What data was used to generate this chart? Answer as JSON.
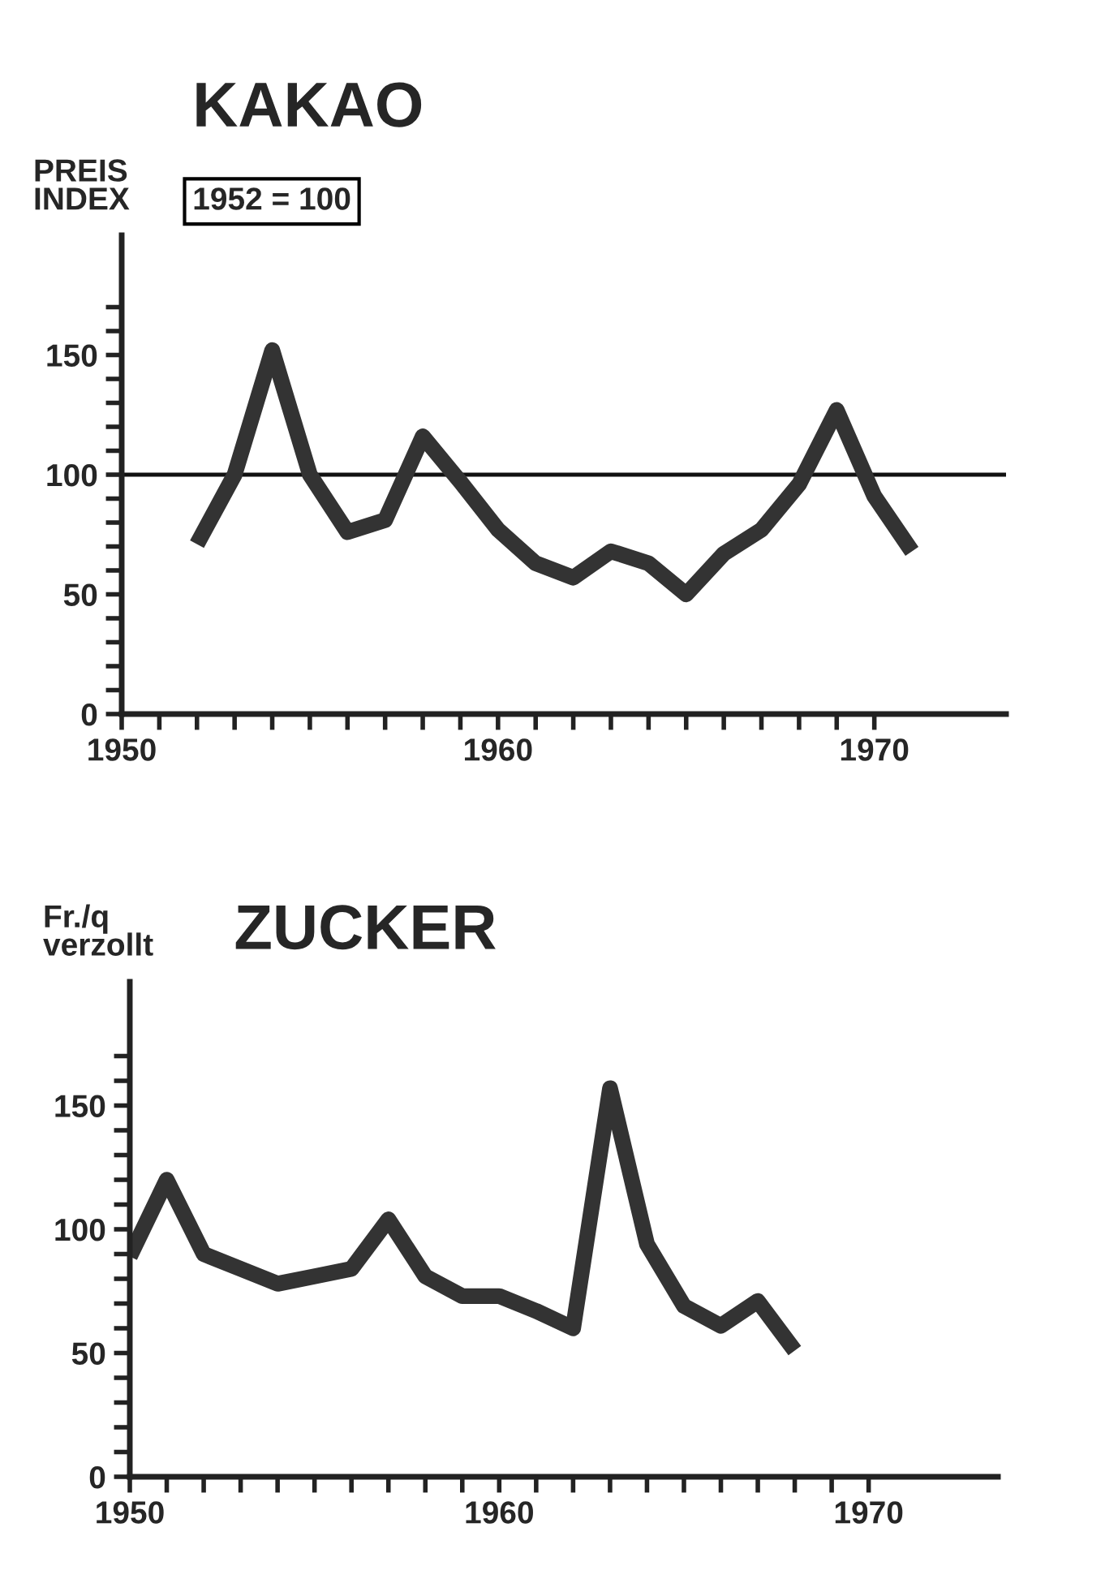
{
  "chart_data": [
    {
      "type": "line",
      "title": "KAKAO",
      "ylabel": "PREIS\nINDEX",
      "annotations": [
        "1952 = 100"
      ],
      "x": [
        1952,
        1953,
        1954,
        1955,
        1956,
        1957,
        1958,
        1959,
        1960,
        1961,
        1962,
        1963,
        1964,
        1965,
        1966,
        1967,
        1968,
        1969,
        1970,
        1971
      ],
      "series": [
        {
          "color": "#333333",
          "values": [
            71,
            100,
            152,
            100,
            76,
            81,
            116,
            97,
            77,
            63,
            57,
            68,
            63,
            50,
            67,
            77,
            96,
            127,
            91,
            68
          ]
        }
      ],
      "xlim": [
        1950,
        1973.5
      ],
      "ylim": [
        0,
        200
      ],
      "xticks": [
        1950,
        {
          "value": 1951,
          "label": null
        },
        {
          "value": 1952,
          "label": null
        },
        {
          "value": 1953,
          "label": null
        },
        {
          "value": 1954,
          "label": null
        },
        {
          "value": 1955,
          "label": null
        },
        {
          "value": 1956,
          "label": null
        },
        {
          "value": 1957,
          "label": null
        },
        {
          "value": 1958,
          "label": null
        },
        {
          "value": 1959,
          "label": null
        },
        1960,
        {
          "value": 1961,
          "label": null
        },
        {
          "value": 1962,
          "label": null
        },
        {
          "value": 1963,
          "label": null
        },
        {
          "value": 1964,
          "label": null
        },
        {
          "value": 1965,
          "label": null
        },
        {
          "value": 1966,
          "label": null
        },
        {
          "value": 1967,
          "label": null
        },
        {
          "value": 1968,
          "label": null
        },
        {
          "value": 1969,
          "label": null
        },
        1970
      ],
      "yticks": [
        0,
        {
          "value": 10,
          "label": null
        },
        {
          "value": 20,
          "label": null
        },
        {
          "value": 30,
          "label": null
        },
        {
          "value": 40,
          "label": null
        },
        50,
        {
          "value": 60,
          "label": null
        },
        {
          "value": 70,
          "label": null
        },
        {
          "value": 80,
          "label": null
        },
        {
          "value": 90,
          "label": null
        },
        100,
        {
          "value": 110,
          "label": null
        },
        {
          "value": 120,
          "label": null
        },
        {
          "value": 130,
          "label": null
        },
        {
          "value": 140,
          "label": null
        },
        150,
        {
          "value": 160,
          "label": null
        },
        {
          "value": 170,
          "label": null
        }
      ],
      "ref_lines": [
        {
          "axis": "y",
          "value": 100,
          "color": "#111111"
        }
      ],
      "grid": false,
      "legend": false,
      "line_style": "solid",
      "marker": "none"
    },
    {
      "type": "line",
      "title": "ZUCKER",
      "ylabel": "Fr./q\nverzollt",
      "x": [
        1950,
        1951,
        1952,
        1953,
        1954,
        1955,
        1956,
        1957,
        1958,
        1959,
        1960,
        1961,
        1962,
        1963,
        1964,
        1965,
        1966,
        1967,
        1968
      ],
      "series": [
        {
          "color": "#333333",
          "values": [
            89,
            120,
            90,
            84,
            78,
            81,
            84,
            104,
            81,
            73,
            73,
            67,
            60,
            157,
            94,
            69,
            61,
            71,
            51
          ]
        }
      ],
      "xlim": [
        1950,
        1973.5
      ],
      "ylim": [
        0,
        200
      ],
      "xticks": [
        1950,
        {
          "value": 1951,
          "label": null
        },
        {
          "value": 1952,
          "label": null
        },
        {
          "value": 1953,
          "label": null
        },
        {
          "value": 1954,
          "label": null
        },
        {
          "value": 1955,
          "label": null
        },
        {
          "value": 1956,
          "label": null
        },
        {
          "value": 1957,
          "label": null
        },
        {
          "value": 1958,
          "label": null
        },
        {
          "value": 1959,
          "label": null
        },
        1960,
        {
          "value": 1961,
          "label": null
        },
        {
          "value": 1962,
          "label": null
        },
        {
          "value": 1963,
          "label": null
        },
        {
          "value": 1964,
          "label": null
        },
        {
          "value": 1965,
          "label": null
        },
        {
          "value": 1966,
          "label": null
        },
        {
          "value": 1967,
          "label": null
        },
        {
          "value": 1968,
          "label": null
        },
        {
          "value": 1969,
          "label": null
        },
        1970
      ],
      "yticks": [
        0,
        {
          "value": 10,
          "label": null
        },
        {
          "value": 20,
          "label": null
        },
        {
          "value": 30,
          "label": null
        },
        {
          "value": 40,
          "label": null
        },
        50,
        {
          "value": 60,
          "label": null
        },
        {
          "value": 70,
          "label": null
        },
        {
          "value": 80,
          "label": null
        },
        {
          "value": 90,
          "label": null
        },
        100,
        {
          "value": 110,
          "label": null
        },
        {
          "value": 120,
          "label": null
        },
        {
          "value": 130,
          "label": null
        },
        {
          "value": 140,
          "label": null
        },
        150,
        {
          "value": 160,
          "label": null
        },
        {
          "value": 170,
          "label": null
        }
      ],
      "grid": false,
      "legend": false,
      "line_style": "solid",
      "marker": "none"
    }
  ]
}
